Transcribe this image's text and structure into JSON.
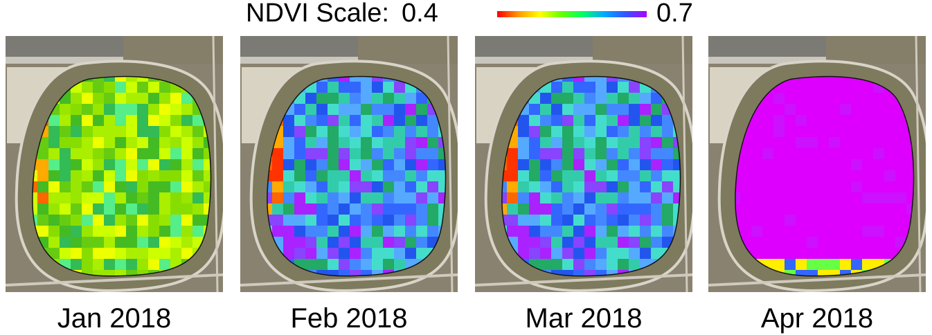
{
  "legend": {
    "title": "NDVI Scale:",
    "min_label": "0.4",
    "max_label": "0.7",
    "gradient_colors": [
      "#ff0000",
      "#ff9900",
      "#ffff00",
      "#66ff00",
      "#00ff66",
      "#00aaff",
      "#3355ff",
      "#aa00ff"
    ]
  },
  "panels": [
    {
      "label": "Jan 2018",
      "palette": [
        "#aaee00",
        "#88dd00",
        "#66cc11",
        "#44bb22",
        "#ccff00",
        "#eeff00",
        "#99e600",
        "#33bb55",
        "#55ee88"
      ]
    },
    {
      "label": "Feb 2018",
      "palette": [
        "#3366ff",
        "#4488ff",
        "#2255ee",
        "#33ccaa",
        "#22aa66",
        "#8844ff",
        "#aa22ff",
        "#55aaff",
        "#44ddcc"
      ]
    },
    {
      "label": "Mar 2018",
      "palette": [
        "#3366ff",
        "#4488ff",
        "#2255ee",
        "#33ccaa",
        "#22aa66",
        "#8844ff",
        "#aa22ff",
        "#55aaff",
        "#44ddcc"
      ]
    },
    {
      "label": "Apr 2018",
      "palette": [
        "#dd00ff",
        "#dd00ff",
        "#dd00ff",
        "#dd00ff",
        "#dd00ff",
        "#dd00ff",
        "#dd00ff",
        "#dd00ff",
        "#cc11ff"
      ]
    }
  ]
}
